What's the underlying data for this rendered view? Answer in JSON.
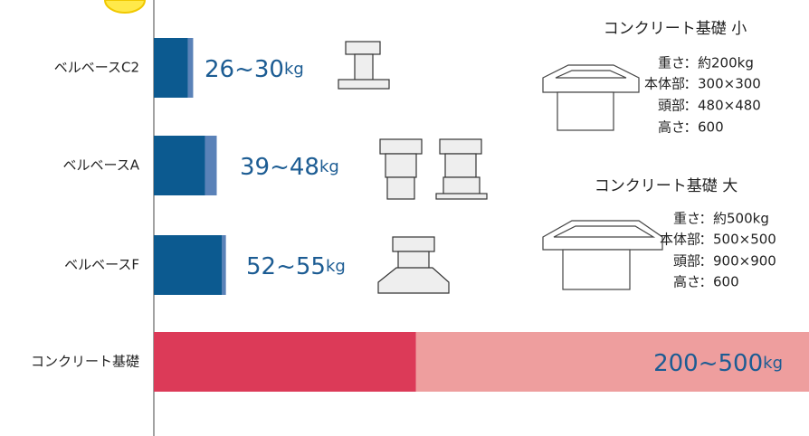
{
  "chart_data": {
    "type": "range-bar",
    "categories": [
      "ベルベースC2",
      "ベルベースA",
      "ベルベースF",
      "コンクリート基礎"
    ],
    "series": [
      {
        "colors": [
          "#0c5a90",
          "#0c5a90",
          "#0c5a90",
          "#dc3a58"
        ],
        "values": [
          26,
          39,
          52,
          200
        ]
      },
      {
        "colors": [
          "#5a82b8",
          "#5a82b8",
          "#5a82b8",
          "#ee9e9e"
        ],
        "values": [
          30,
          48,
          55,
          500
        ]
      }
    ],
    "range_labels": [
      "26~30",
      "39~48",
      "52~55",
      "200~500"
    ],
    "unit": "kg",
    "xlim": [
      0,
      500
    ],
    "annotations": [
      {
        "title": "コンクリート基礎 小",
        "separator": "：",
        "lines": [
          {
            "label": "重さ",
            "value": "約200kg"
          },
          {
            "label": "本体部",
            "value": "300×300"
          },
          {
            "label": "頭部",
            "value": "480×480"
          },
          {
            "label": "高さ",
            "value": "600"
          }
        ]
      },
      {
        "title": "コンクリート基礎 大",
        "separator": "：",
        "lines": [
          {
            "label": "重さ",
            "value": "約500kg"
          },
          {
            "label": "本体部",
            "value": "500×500"
          },
          {
            "label": "頭部",
            "value": "900×900"
          },
          {
            "label": "高さ",
            "value": "600"
          }
        ]
      }
    ]
  }
}
